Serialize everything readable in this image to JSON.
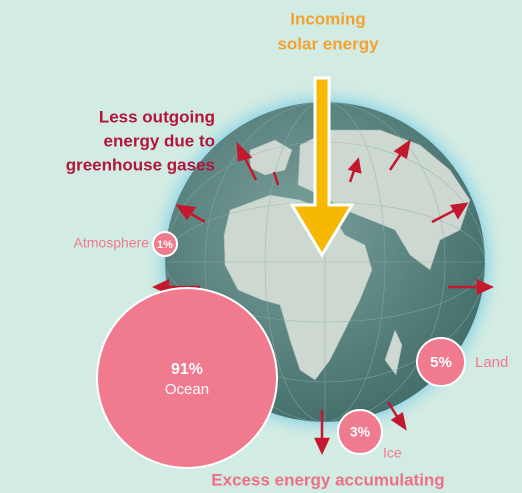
{
  "incoming": [
    "Incoming",
    "solar energy"
  ],
  "outgoing": [
    "Less outgoing",
    "energy due to",
    "greenhouse gases"
  ],
  "shares": [
    {
      "label": "Ocean",
      "percent": "91%"
    },
    {
      "label": "Land",
      "percent": "5%"
    },
    {
      "label": "Ice",
      "percent": "3%"
    },
    {
      "label": "Atmosphere",
      "percent": "1%"
    }
  ],
  "footer": "Excess energy accumulating"
}
